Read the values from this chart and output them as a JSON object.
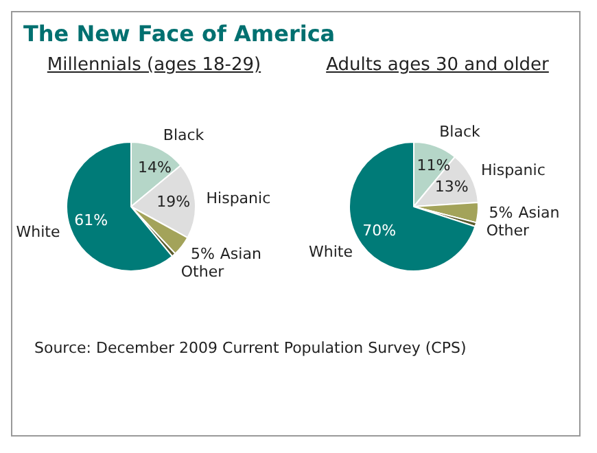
{
  "chart_data": [
    {
      "type": "other",
      "title": "The New Face of America"
    },
    {
      "type": "pie",
      "title": "Millennials (ages 18-29)",
      "categories": [
        "Black",
        "Hispanic",
        "Asian",
        "Other",
        "White"
      ],
      "values": [
        14,
        19,
        5,
        1,
        61
      ],
      "colors": [
        "#b5d6c8",
        "#dedede",
        "#a3a35a",
        "#5c5c2e",
        "#007b78"
      ],
      "value_labels": [
        "14%",
        "19%",
        "5%",
        null,
        "61%"
      ]
    },
    {
      "type": "pie",
      "title": "Adults ages 30 and older",
      "categories": [
        "Black",
        "Hispanic",
        "Asian",
        "Other",
        "White"
      ],
      "values": [
        11,
        13,
        5,
        1,
        70
      ],
      "colors": [
        "#b5d6c8",
        "#dedede",
        "#a3a35a",
        "#5c5c2e",
        "#007b78"
      ],
      "value_labels": [
        "11%",
        "13%",
        "5%",
        null,
        "70%"
      ]
    },
    {
      "type": "other",
      "annotations": [
        "Source: December 2009 Current Population Survey (CPS)"
      ]
    }
  ]
}
